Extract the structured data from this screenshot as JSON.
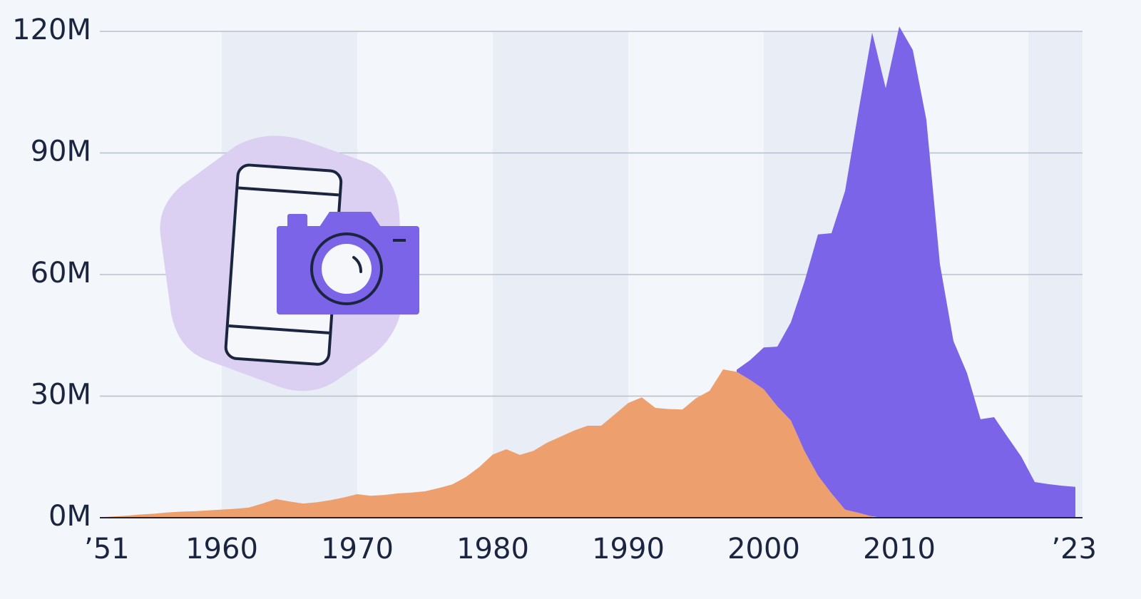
{
  "chart_data": {
    "type": "stacked_area",
    "x": [
      1951,
      1952,
      1953,
      1954,
      1955,
      1956,
      1957,
      1958,
      1959,
      1960,
      1961,
      1962,
      1963,
      1964,
      1965,
      1966,
      1967,
      1968,
      1969,
      1970,
      1971,
      1972,
      1973,
      1974,
      1975,
      1976,
      1977,
      1978,
      1979,
      1980,
      1981,
      1982,
      1983,
      1984,
      1985,
      1986,
      1987,
      1988,
      1989,
      1990,
      1991,
      1992,
      1993,
      1994,
      1995,
      1996,
      1997,
      1998,
      1999,
      2000,
      2001,
      2002,
      2003,
      2004,
      2005,
      2006,
      2007,
      2008,
      2009,
      2010,
      2011,
      2012,
      2013,
      2014,
      2015,
      2016,
      2017,
      2018,
      2019,
      2020,
      2021,
      2022,
      2023
    ],
    "series": [
      {
        "color": "#ee9f6e",
        "values": [
          0.1,
          0.3,
          0.5,
          0.8,
          1.0,
          1.3,
          1.5,
          1.6,
          1.8,
          2.0,
          2.2,
          2.5,
          3.5,
          4.6,
          4.0,
          3.5,
          3.8,
          4.3,
          5.0,
          5.8,
          5.4,
          5.6,
          6.0,
          6.2,
          6.5,
          7.3,
          8.2,
          10.0,
          12.5,
          15.6,
          16.9,
          15.5,
          16.5,
          18.5,
          20.0,
          21.5,
          22.7,
          22.7,
          25.5,
          28.3,
          29.7,
          27.1,
          26.8,
          26.7,
          29.5,
          31.3,
          36.6,
          36.0,
          34.0,
          31.7,
          27.5,
          24.0,
          16.5,
          10.4,
          6.0,
          2.0,
          1.2,
          0.3,
          null,
          null,
          null,
          null,
          null,
          null,
          null,
          null,
          null,
          null,
          null,
          null,
          null,
          null,
          null
        ]
      },
      {
        "color": "#7b64e8",
        "values": [
          null,
          null,
          null,
          null,
          null,
          null,
          null,
          null,
          null,
          null,
          null,
          null,
          null,
          null,
          null,
          null,
          null,
          null,
          null,
          null,
          null,
          null,
          null,
          null,
          null,
          null,
          null,
          null,
          null,
          null,
          null,
          null,
          null,
          null,
          null,
          null,
          null,
          null,
          null,
          null,
          null,
          null,
          null,
          null,
          null,
          null,
          null,
          0.5,
          4.9,
          10.3,
          14.7,
          24.2,
          41.7,
          59.5,
          64.2,
          78.6,
          99.3,
          119.4,
          106,
          121.2,
          115.4,
          98.2,
          62.6,
          43.6,
          35.7,
          24.3,
          24.8,
          19.9,
          15.1,
          8.8,
          8.3,
          7.9,
          7.6
        ]
      }
    ],
    "xlim": [
      1951,
      2023
    ],
    "xticks": [
      {
        "value": 1951,
        "label": "’51"
      },
      1960,
      1970,
      1980,
      1990,
      2000,
      2010,
      {
        "value": 2023,
        "label": "’23"
      }
    ],
    "ylim": [
      0,
      120
    ],
    "yticks": [
      {
        "value": 0,
        "label": "0M"
      },
      {
        "value": 30,
        "label": "30M"
      },
      {
        "value": 60,
        "label": "60M"
      },
      {
        "value": 90,
        "label": "90M"
      },
      {
        "value": 120,
        "label": "120M"
      }
    ],
    "grid": true
  }
}
